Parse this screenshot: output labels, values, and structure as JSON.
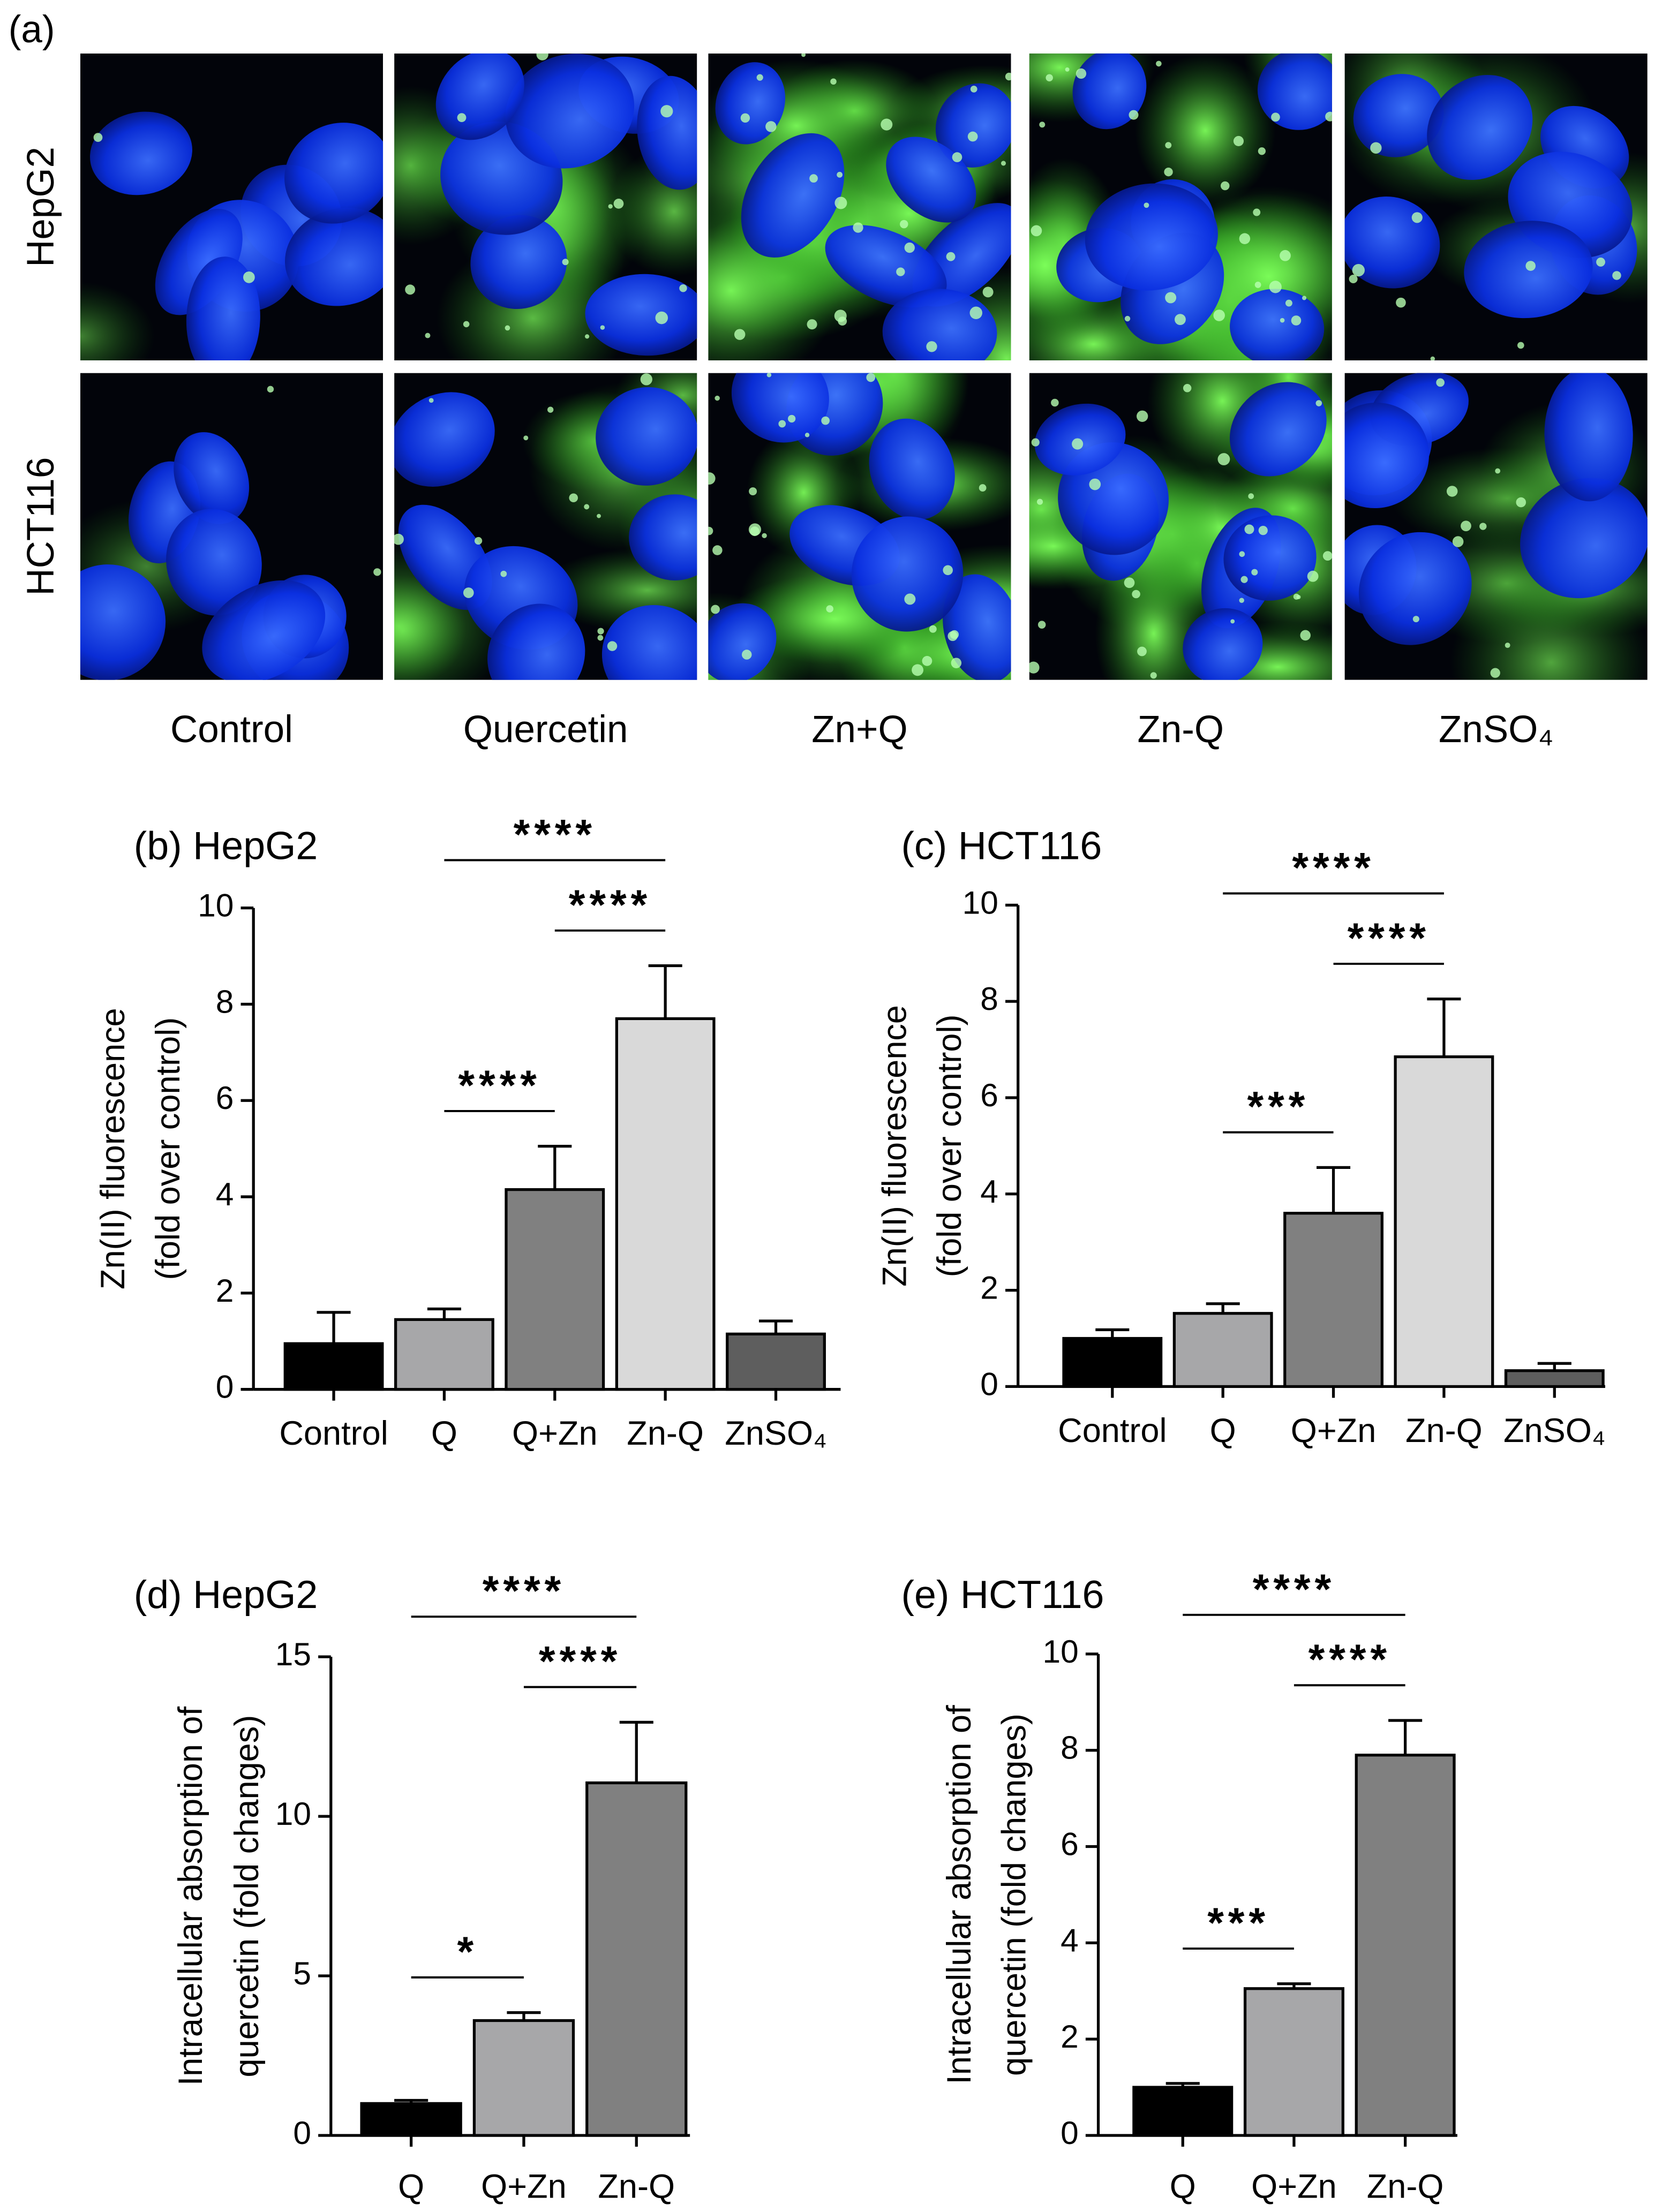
{
  "microscopy": {
    "panel_label": "(a)",
    "rows": [
      "HepG2",
      "HCT116"
    ],
    "columns": [
      "Control",
      "Quercetin",
      "Zn+Q",
      "Zn-Q",
      "ZnSO₄"
    ]
  },
  "chart_data": [
    {
      "type": "bar",
      "title": "(b) HepG2",
      "ylabel": [
        "Zn(II) fluorescence",
        "(fold over control)"
      ],
      "categories": [
        "Control",
        "Q",
        "Q+Zn",
        "Zn-Q",
        "ZnSO₄"
      ],
      "values": [
        0.95,
        1.45,
        4.15,
        7.7,
        1.15
      ],
      "errors": [
        0.65,
        0.22,
        0.9,
        1.1,
        0.27
      ],
      "colors": [
        "#000000",
        "#a7a7a9",
        "#808080",
        "#d9d9d9",
        "#5e5e5e"
      ],
      "ylim": [
        0,
        10
      ],
      "yticks": [
        0,
        2,
        4,
        6,
        8,
        10
      ],
      "annotations": [
        {
          "label": "****",
          "between": [
            "Q",
            "Q+Zn"
          ]
        },
        {
          "label": "****",
          "between": [
            "Q+Zn",
            "Zn-Q"
          ]
        },
        {
          "label": "****",
          "between": [
            "Q",
            "Zn-Q"
          ]
        }
      ]
    },
    {
      "type": "bar",
      "title": "(c) HCT116",
      "ylabel": [
        "Zn(II) fluorescence",
        "(fold over control)"
      ],
      "categories": [
        "Control",
        "Q",
        "Q+Zn",
        "Zn-Q",
        "ZnSO₄"
      ],
      "values": [
        1.0,
        1.52,
        3.6,
        6.85,
        0.33
      ],
      "errors": [
        0.18,
        0.2,
        0.95,
        1.2,
        0.15
      ],
      "colors": [
        "#000000",
        "#a7a7a9",
        "#808080",
        "#d9d9d9",
        "#5e5e5e"
      ],
      "ylim": [
        0,
        10
      ],
      "yticks": [
        0,
        2,
        4,
        6,
        8,
        10
      ],
      "annotations": [
        {
          "label": "***",
          "between": [
            "Q",
            "Q+Zn"
          ]
        },
        {
          "label": "****",
          "between": [
            "Q+Zn",
            "Zn-Q"
          ]
        },
        {
          "label": "****",
          "between": [
            "Q",
            "Zn-Q"
          ]
        }
      ]
    },
    {
      "type": "bar",
      "title": "(d) HepG2",
      "ylabel": [
        "Intracellular absorption of",
        "quercetin (fold changes)"
      ],
      "categories": [
        "Q",
        "Q+Zn",
        "Zn-Q"
      ],
      "values": [
        1.0,
        3.6,
        11.05
      ],
      "errors": [
        0.1,
        0.25,
        1.9
      ],
      "colors": [
        "#000000",
        "#a7a7a9",
        "#808080"
      ],
      "ylim": [
        0,
        15
      ],
      "yticks": [
        0,
        5,
        10,
        15
      ],
      "annotations": [
        {
          "label": "*",
          "between": [
            "Q",
            "Q+Zn"
          ]
        },
        {
          "label": "****",
          "between": [
            "Q+Zn",
            "Zn-Q"
          ]
        },
        {
          "label": "****",
          "between": [
            "Q",
            "Zn-Q"
          ]
        }
      ]
    },
    {
      "type": "bar",
      "title": "(e) HCT116",
      "ylabel": [
        "Intracellular absorption of",
        "quercetin (fold changes)"
      ],
      "categories": [
        "Q",
        "Q+Zn",
        "Zn-Q"
      ],
      "values": [
        1.0,
        3.05,
        7.9
      ],
      "errors": [
        0.08,
        0.1,
        0.72
      ],
      "colors": [
        "#000000",
        "#a7a7a9",
        "#808080"
      ],
      "ylim": [
        0,
        10
      ],
      "yticks": [
        0,
        2,
        4,
        6,
        8,
        10
      ],
      "annotations": [
        {
          "label": "***",
          "between": [
            "Q",
            "Q+Zn"
          ]
        },
        {
          "label": "****",
          "between": [
            "Q+Zn",
            "Zn-Q"
          ]
        },
        {
          "label": "****",
          "between": [
            "Q",
            "Zn-Q"
          ]
        }
      ]
    }
  ]
}
